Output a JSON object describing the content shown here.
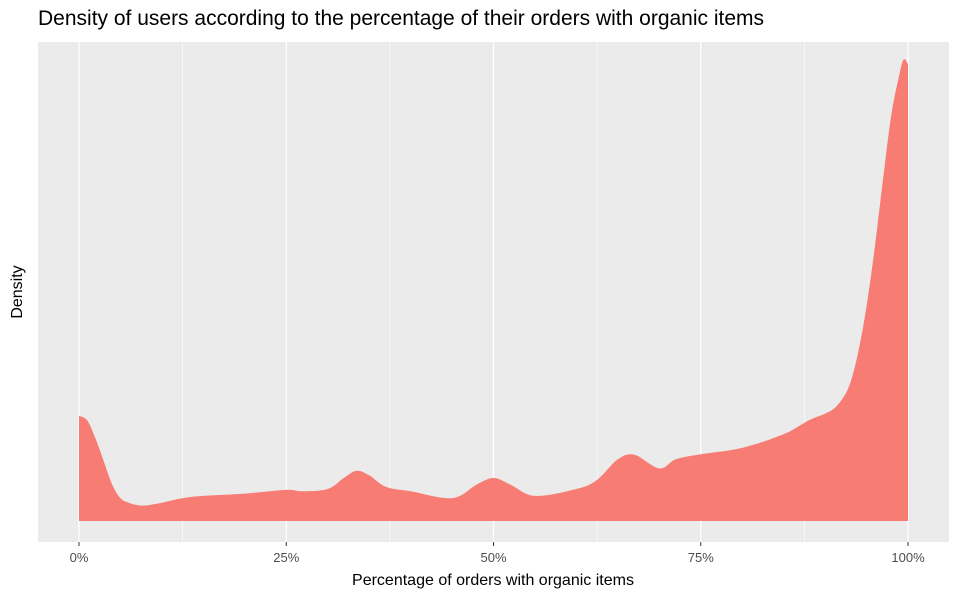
{
  "chart_data": {
    "type": "area",
    "title": "Density of users according to the percentage of their orders with organic items",
    "xlabel": "Percentage of orders with organic items",
    "ylabel": "Density",
    "xlim": [
      -0.02,
      1.02
    ],
    "ylim": [
      0,
      1.05
    ],
    "x_ticks": [
      0,
      0.25,
      0.5,
      0.75,
      1.0
    ],
    "x_tick_labels": [
      "0%",
      "25%",
      "50%",
      "75%",
      "100%"
    ],
    "x_minor_ticks": [
      0.125,
      0.375,
      0.625,
      0.875
    ],
    "y_ticks_shown": false,
    "grid": "vertical",
    "panel_background": "#ebebeb",
    "fill_color": "#f8766d",
    "series": [
      {
        "x": [
          0,
          0.01,
          0.02,
          0.03,
          0.04,
          0.05,
          0.06,
          0.07,
          0.08,
          0.1,
          0.125,
          0.15,
          0.2,
          0.25,
          0.27,
          0.3,
          0.32,
          0.335,
          0.35,
          0.37,
          0.4,
          0.45,
          0.48,
          0.5,
          0.52,
          0.55,
          0.6,
          0.625,
          0.65,
          0.67,
          0.7,
          0.72,
          0.75,
          0.8,
          0.85,
          0.88,
          0.9,
          0.91,
          0.92,
          0.93,
          0.94,
          0.95,
          0.96,
          0.97,
          0.98,
          0.99,
          0.995,
          1.0
        ],
        "y": [
          0.23,
          0.22,
          0.18,
          0.13,
          0.08,
          0.05,
          0.04,
          0.035,
          0.034,
          0.04,
          0.05,
          0.055,
          0.06,
          0.068,
          0.065,
          0.07,
          0.095,
          0.11,
          0.1,
          0.075,
          0.065,
          0.05,
          0.08,
          0.094,
          0.08,
          0.055,
          0.07,
          0.09,
          0.135,
          0.145,
          0.115,
          0.135,
          0.146,
          0.16,
          0.19,
          0.22,
          0.235,
          0.245,
          0.265,
          0.3,
          0.37,
          0.47,
          0.6,
          0.75,
          0.89,
          0.98,
          1.01,
          1.0
        ]
      }
    ]
  }
}
